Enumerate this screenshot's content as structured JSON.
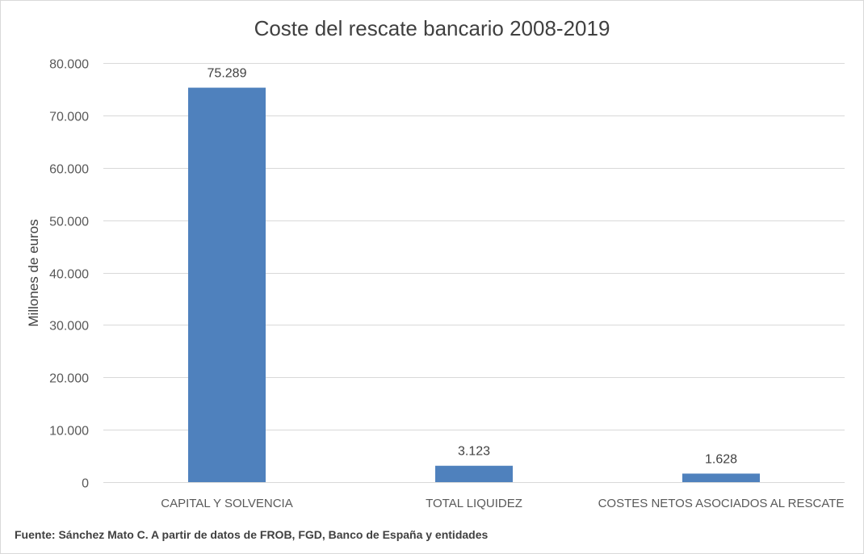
{
  "chart_data": {
    "type": "bar",
    "title": "Coste del rescate bancario 2008-2019",
    "xlabel": "",
    "ylabel": "Millones de euros",
    "categories": [
      "CAPITAL Y SOLVENCIA",
      "TOTAL LIQUIDEZ",
      "COSTES NETOS ASOCIADOS AL RESCATE"
    ],
    "values": [
      75289,
      3123,
      1628
    ],
    "value_labels": [
      "75.289",
      "3.123",
      "1.628"
    ],
    "ylim": [
      0,
      80000
    ],
    "y_ticks": [
      0,
      10000,
      20000,
      30000,
      40000,
      50000,
      60000,
      70000,
      80000
    ],
    "y_tick_labels": [
      "0",
      "10.000",
      "20.000",
      "30.000",
      "40.000",
      "50.000",
      "60.000",
      "70.000",
      "80.000"
    ],
    "grid": true,
    "legend": "none",
    "bar_color": "#4f81bd"
  },
  "source": "Fuente: Sánchez Mato C. A partir de datos de FROB, FGD, Banco de España y entidades"
}
